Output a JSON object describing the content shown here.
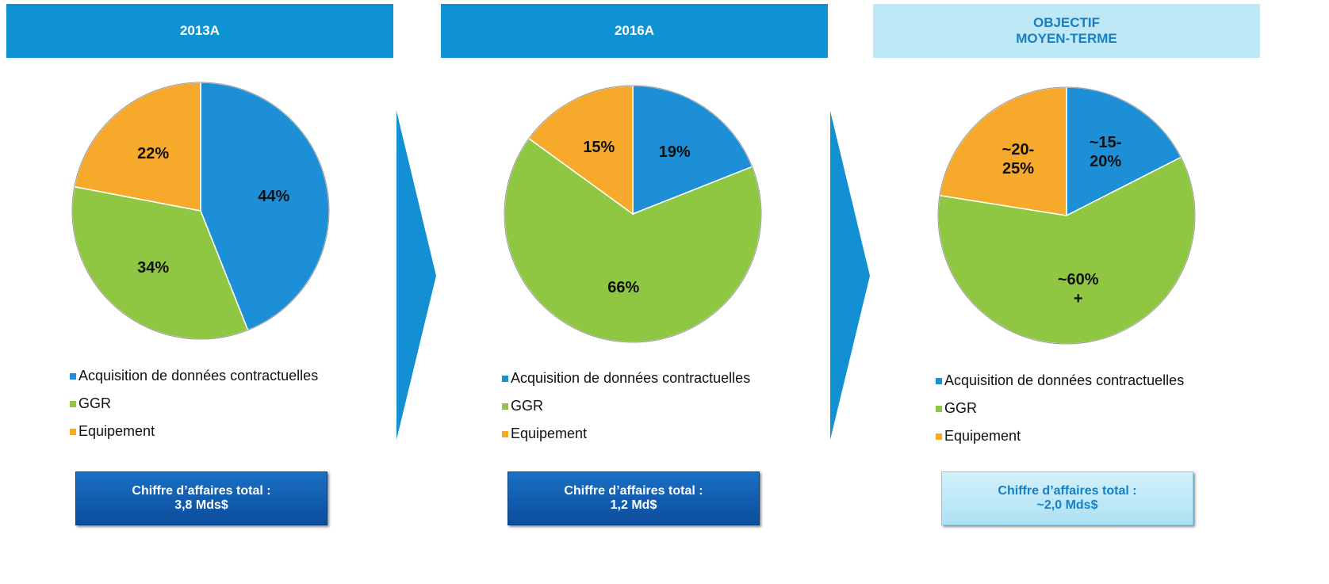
{
  "chart_data": [
    {
      "type": "pie",
      "title": "2013A",
      "categories": [
        "Acquisition de données contractuelles",
        "GGR",
        "Equipement"
      ],
      "colors": [
        "#1c8fd6",
        "#8fc742",
        "#f6a92b"
      ],
      "values": [
        44,
        34,
        22
      ],
      "value_labels": [
        "44%",
        "34%",
        "22%"
      ],
      "total": [
        "Chiffre d’affaires total :",
        "3,8 Mds$"
      ]
    },
    {
      "type": "pie",
      "title": "2016A",
      "categories": [
        "Acquisition de données contractuelles",
        "GGR",
        "Equipement"
      ],
      "colors": [
        "#1c8fd6",
        "#8fc742",
        "#f6a92b"
      ],
      "values": [
        19,
        66,
        15
      ],
      "value_labels": [
        "19%",
        "66%",
        "15%"
      ],
      "total": [
        "Chiffre d’affaires total :",
        "1,2 Md$"
      ]
    },
    {
      "type": "pie",
      "title": "OBJECTIF MOYEN-TERME",
      "categories": [
        "Acquisition de données contractuelles",
        "GGR",
        "Equipement"
      ],
      "colors": [
        "#1c8fd6",
        "#8fc742",
        "#f6a92b"
      ],
      "values": [
        17.5,
        60,
        22.5
      ],
      "value_labels": [
        "~15-20%",
        "~60% +",
        "~20-25%"
      ],
      "total": [
        "Chiffre d’affaires total :",
        "~2,0 Mds$"
      ]
    }
  ]
}
